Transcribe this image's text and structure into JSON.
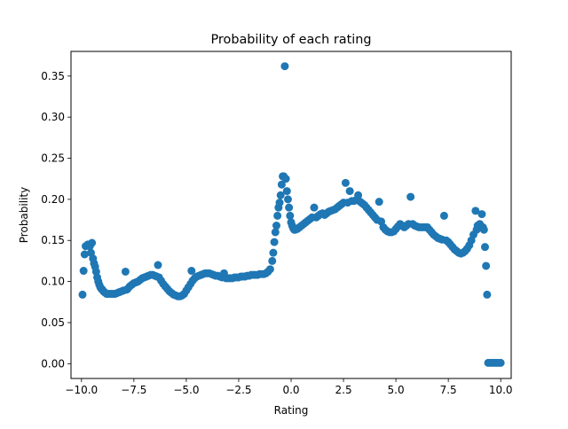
{
  "chart_data": {
    "type": "scatter",
    "title": "Probability of each rating",
    "xlabel": "Rating",
    "ylabel": "Probability",
    "xlim": [
      -10.5,
      10.5
    ],
    "ylim": [
      -0.018,
      0.38
    ],
    "xticks": [
      -10.0,
      -7.5,
      -5.0,
      -2.5,
      0.0,
      2.5,
      5.0,
      7.5,
      10.0
    ],
    "xtick_labels": [
      "−10.0",
      "−7.5",
      "−5.0",
      "−2.5",
      "0.0",
      "2.5",
      "5.0",
      "7.5",
      "10.0"
    ],
    "yticks": [
      0.0,
      0.05,
      0.1,
      0.15,
      0.2,
      0.25,
      0.3,
      0.35
    ],
    "ytick_labels": [
      "0.00",
      "0.05",
      "0.10",
      "0.15",
      "0.20",
      "0.25",
      "0.30",
      "0.35"
    ],
    "grid": false,
    "marker_color": "#1f77b4",
    "series": [
      {
        "points": [
          [
            -9.95,
            0.084
          ],
          [
            -9.9,
            0.113
          ],
          [
            -9.85,
            0.133
          ],
          [
            -9.8,
            0.143
          ],
          [
            -9.7,
            0.145
          ],
          [
            -9.6,
            0.143
          ],
          [
            -9.55,
            0.135
          ],
          [
            -9.5,
            0.147
          ],
          [
            -9.45,
            0.128
          ],
          [
            -9.4,
            0.122
          ],
          [
            -9.35,
            0.118
          ],
          [
            -9.3,
            0.112
          ],
          [
            -9.25,
            0.105
          ],
          [
            -9.2,
            0.1
          ],
          [
            -9.15,
            0.096
          ],
          [
            -9.1,
            0.093
          ],
          [
            -9.05,
            0.091
          ],
          [
            -9.0,
            0.09
          ],
          [
            -8.95,
            0.088
          ],
          [
            -8.9,
            0.087
          ],
          [
            -8.85,
            0.086
          ],
          [
            -8.8,
            0.085
          ],
          [
            -8.7,
            0.085
          ],
          [
            -8.6,
            0.085
          ],
          [
            -8.5,
            0.085
          ],
          [
            -8.4,
            0.085
          ],
          [
            -8.3,
            0.086
          ],
          [
            -8.2,
            0.087
          ],
          [
            -8.1,
            0.088
          ],
          [
            -8.0,
            0.089
          ],
          [
            -7.9,
            0.112
          ],
          [
            -7.85,
            0.09
          ],
          [
            -7.8,
            0.091
          ],
          [
            -7.7,
            0.094
          ],
          [
            -7.6,
            0.096
          ],
          [
            -7.5,
            0.098
          ],
          [
            -7.4,
            0.099
          ],
          [
            -7.3,
            0.1
          ],
          [
            -7.2,
            0.102
          ],
          [
            -7.1,
            0.104
          ],
          [
            -7.0,
            0.105
          ],
          [
            -6.9,
            0.106
          ],
          [
            -6.8,
            0.107
          ],
          [
            -6.7,
            0.108
          ],
          [
            -6.6,
            0.108
          ],
          [
            -6.5,
            0.107
          ],
          [
            -6.4,
            0.106
          ],
          [
            -6.35,
            0.12
          ],
          [
            -6.3,
            0.105
          ],
          [
            -6.2,
            0.101
          ],
          [
            -6.1,
            0.097
          ],
          [
            -6.0,
            0.094
          ],
          [
            -5.9,
            0.091
          ],
          [
            -5.8,
            0.088
          ],
          [
            -5.7,
            0.086
          ],
          [
            -5.6,
            0.084
          ],
          [
            -5.5,
            0.083
          ],
          [
            -5.4,
            0.082
          ],
          [
            -5.3,
            0.082
          ],
          [
            -5.2,
            0.083
          ],
          [
            -5.1,
            0.085
          ],
          [
            -5.0,
            0.089
          ],
          [
            -4.9,
            0.093
          ],
          [
            -4.8,
            0.097
          ],
          [
            -4.75,
            0.113
          ],
          [
            -4.7,
            0.101
          ],
          [
            -4.6,
            0.104
          ],
          [
            -4.5,
            0.106
          ],
          [
            -4.4,
            0.107
          ],
          [
            -4.3,
            0.108
          ],
          [
            -4.2,
            0.109
          ],
          [
            -4.1,
            0.11
          ],
          [
            -4.0,
            0.11
          ],
          [
            -3.9,
            0.11
          ],
          [
            -3.8,
            0.109
          ],
          [
            -3.7,
            0.108
          ],
          [
            -3.6,
            0.107
          ],
          [
            -3.5,
            0.107
          ],
          [
            -3.4,
            0.106
          ],
          [
            -3.3,
            0.105
          ],
          [
            -3.2,
            0.11
          ],
          [
            -3.1,
            0.104
          ],
          [
            -3.0,
            0.104
          ],
          [
            -2.9,
            0.104
          ],
          [
            -2.8,
            0.104
          ],
          [
            -2.7,
            0.105
          ],
          [
            -2.6,
            0.105
          ],
          [
            -2.5,
            0.105
          ],
          [
            -2.4,
            0.106
          ],
          [
            -2.3,
            0.106
          ],
          [
            -2.2,
            0.106
          ],
          [
            -2.1,
            0.107
          ],
          [
            -2.0,
            0.107
          ],
          [
            -1.9,
            0.108
          ],
          [
            -1.8,
            0.108
          ],
          [
            -1.7,
            0.108
          ],
          [
            -1.6,
            0.108
          ],
          [
            -1.5,
            0.109
          ],
          [
            -1.4,
            0.109
          ],
          [
            -1.3,
            0.109
          ],
          [
            -1.2,
            0.11
          ],
          [
            -1.1,
            0.112
          ],
          [
            -1.0,
            0.115
          ],
          [
            -0.9,
            0.125
          ],
          [
            -0.85,
            0.135
          ],
          [
            -0.8,
            0.148
          ],
          [
            -0.75,
            0.16
          ],
          [
            -0.7,
            0.168
          ],
          [
            -0.65,
            0.18
          ],
          [
            -0.6,
            0.19
          ],
          [
            -0.55,
            0.196
          ],
          [
            -0.5,
            0.205
          ],
          [
            -0.45,
            0.218
          ],
          [
            -0.4,
            0.228
          ],
          [
            -0.35,
            0.228
          ],
          [
            -0.3,
            0.362
          ],
          [
            -0.25,
            0.225
          ],
          [
            -0.2,
            0.21
          ],
          [
            -0.15,
            0.2
          ],
          [
            -0.1,
            0.19
          ],
          [
            -0.05,
            0.18
          ],
          [
            0.0,
            0.172
          ],
          [
            0.05,
            0.168
          ],
          [
            0.1,
            0.165
          ],
          [
            0.15,
            0.163
          ],
          [
            0.2,
            0.163
          ],
          [
            0.3,
            0.164
          ],
          [
            0.4,
            0.166
          ],
          [
            0.5,
            0.168
          ],
          [
            0.6,
            0.17
          ],
          [
            0.7,
            0.172
          ],
          [
            0.8,
            0.174
          ],
          [
            0.9,
            0.176
          ],
          [
            1.0,
            0.178
          ],
          [
            1.1,
            0.19
          ],
          [
            1.2,
            0.178
          ],
          [
            1.3,
            0.18
          ],
          [
            1.4,
            0.182
          ],
          [
            1.5,
            0.183
          ],
          [
            1.6,
            0.181
          ],
          [
            1.7,
            0.183
          ],
          [
            1.8,
            0.185
          ],
          [
            1.9,
            0.186
          ],
          [
            2.0,
            0.187
          ],
          [
            2.1,
            0.188
          ],
          [
            2.2,
            0.19
          ],
          [
            2.3,
            0.192
          ],
          [
            2.4,
            0.194
          ],
          [
            2.5,
            0.196
          ],
          [
            2.6,
            0.22
          ],
          [
            2.7,
            0.196
          ],
          [
            2.8,
            0.21
          ],
          [
            2.9,
            0.198
          ],
          [
            3.0,
            0.198
          ],
          [
            3.1,
            0.199
          ],
          [
            3.2,
            0.205
          ],
          [
            3.3,
            0.197
          ],
          [
            3.4,
            0.195
          ],
          [
            3.5,
            0.193
          ],
          [
            3.6,
            0.19
          ],
          [
            3.7,
            0.187
          ],
          [
            3.8,
            0.184
          ],
          [
            3.9,
            0.181
          ],
          [
            4.0,
            0.178
          ],
          [
            4.1,
            0.175
          ],
          [
            4.2,
            0.197
          ],
          [
            4.3,
            0.173
          ],
          [
            4.4,
            0.166
          ],
          [
            4.5,
            0.163
          ],
          [
            4.6,
            0.161
          ],
          [
            4.7,
            0.16
          ],
          [
            4.8,
            0.16
          ],
          [
            4.9,
            0.161
          ],
          [
            5.0,
            0.164
          ],
          [
            5.1,
            0.167
          ],
          [
            5.2,
            0.17
          ],
          [
            5.3,
            0.168
          ],
          [
            5.4,
            0.166
          ],
          [
            5.5,
            0.168
          ],
          [
            5.6,
            0.17
          ],
          [
            5.7,
            0.203
          ],
          [
            5.8,
            0.17
          ],
          [
            5.9,
            0.168
          ],
          [
            6.0,
            0.167
          ],
          [
            6.1,
            0.166
          ],
          [
            6.2,
            0.166
          ],
          [
            6.3,
            0.166
          ],
          [
            6.4,
            0.166
          ],
          [
            6.5,
            0.166
          ],
          [
            6.6,
            0.163
          ],
          [
            6.7,
            0.16
          ],
          [
            6.8,
            0.157
          ],
          [
            6.9,
            0.155
          ],
          [
            7.0,
            0.153
          ],
          [
            7.1,
            0.152
          ],
          [
            7.2,
            0.151
          ],
          [
            7.3,
            0.18
          ],
          [
            7.4,
            0.15
          ],
          [
            7.5,
            0.148
          ],
          [
            7.6,
            0.145
          ],
          [
            7.7,
            0.142
          ],
          [
            7.8,
            0.139
          ],
          [
            7.9,
            0.137
          ],
          [
            8.0,
            0.135
          ],
          [
            8.1,
            0.134
          ],
          [
            8.2,
            0.135
          ],
          [
            8.3,
            0.137
          ],
          [
            8.4,
            0.14
          ],
          [
            8.5,
            0.144
          ],
          [
            8.6,
            0.15
          ],
          [
            8.7,
            0.157
          ],
          [
            8.8,
            0.186
          ],
          [
            8.85,
            0.163
          ],
          [
            8.9,
            0.168
          ],
          [
            9.0,
            0.17
          ],
          [
            9.1,
            0.182
          ],
          [
            9.15,
            0.166
          ],
          [
            9.2,
            0.163
          ],
          [
            9.25,
            0.142
          ],
          [
            9.3,
            0.119
          ],
          [
            9.35,
            0.084
          ],
          [
            9.4,
            0.001
          ],
          [
            9.5,
            0.001
          ],
          [
            9.6,
            0.001
          ],
          [
            9.7,
            0.001
          ],
          [
            9.8,
            0.001
          ],
          [
            9.9,
            0.001
          ],
          [
            10.0,
            0.001
          ]
        ]
      }
    ]
  }
}
